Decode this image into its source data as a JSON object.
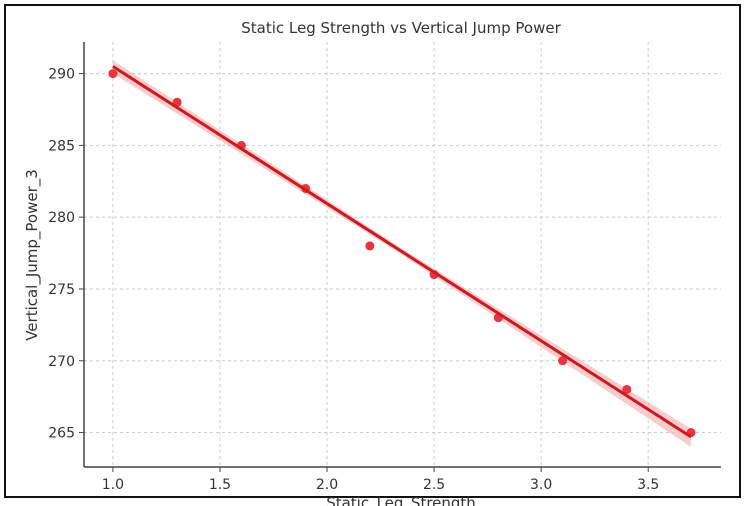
{
  "chart_data": {
    "type": "scatter",
    "title": "Static Leg Strength vs Vertical Jump Power",
    "xlabel": "Static_Leg_Strength",
    "ylabel": "Vertical_Jump_Power_3",
    "xlim": [
      0.865,
      3.84
    ],
    "ylim": [
      262.6,
      292.2
    ],
    "xticks": [
      "1.0",
      "1.5",
      "2.0",
      "2.5",
      "3.0",
      "3.5"
    ],
    "yticks": [
      "265",
      "270",
      "275",
      "280",
      "285",
      "290"
    ],
    "grid": true,
    "x": [
      1.0,
      1.3,
      1.6,
      1.9,
      2.2,
      2.5,
      2.8,
      3.1,
      3.4,
      3.7
    ],
    "y": [
      290,
      288,
      285,
      282,
      278,
      276,
      273,
      270,
      268,
      265
    ],
    "regression_line": {
      "x": [
        1.0,
        3.7
      ],
      "y": [
        290.5,
        264.7
      ]
    },
    "colors": {
      "points": "#e8343a",
      "line": "#d0191f",
      "band": "#f5b5b8"
    }
  }
}
